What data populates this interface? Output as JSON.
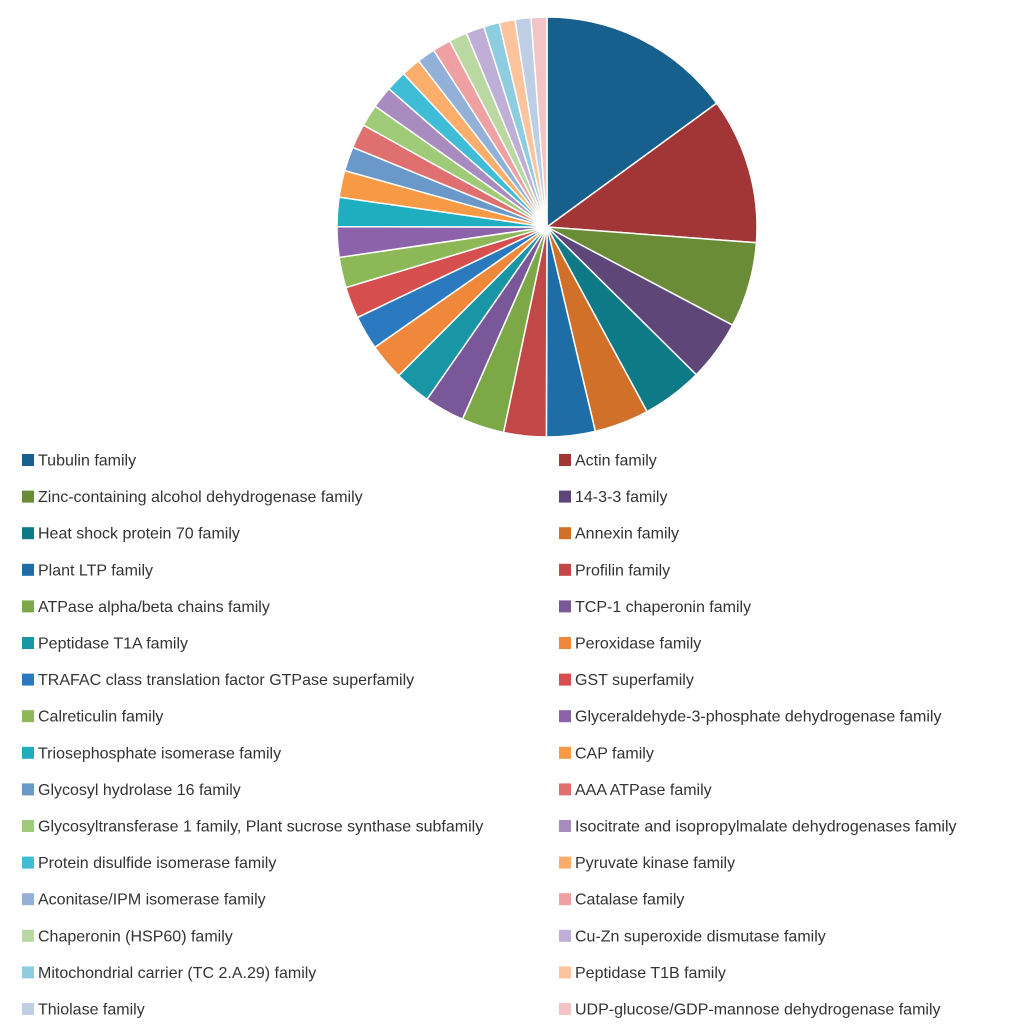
{
  "chart_data": {
    "type": "pie",
    "title": "",
    "legend_position": "bottom",
    "categories": [
      "Tubulin family",
      "Actin family",
      "Zinc-containing alcohol dehydrogenase family",
      "14-3-3 family",
      "Heat shock protein 70 family",
      "Annexin family",
      "Plant LTP family",
      "Profilin family",
      "ATPase alpha/beta chains family",
      "TCP-1 chaperonin family",
      "Peptidase T1A family",
      "Peroxidase family",
      "TRAFAC class translation factor GTPase superfamily",
      "GST superfamily",
      "Calreticulin family",
      "Glyceraldehyde-3-phosphate dehydrogenase family",
      "Triosephosphate isomerase family",
      "CAP family",
      "Glycosyl hydrolase 16 family",
      "AAA ATPase family",
      "Glycosyltransferase 1 family, Plant sucrose synthase subfamily",
      "Isocitrate and isopropylmalate dehydrogenases family",
      "Protein disulfide isomerase family",
      "Pyruvate kinase family",
      "Aconitase/IPM isomerase family",
      "Catalase family",
      "Chaperonin (HSP60) family",
      "Cu-Zn superoxide dismutase family",
      "Mitochondrial carrier (TC 2.A.29) family",
      "Peptidase T1B family",
      "Thiolase family",
      "UDP-glucose/GDP-mannose dehydrogenase family"
    ],
    "values": [
      16,
      12,
      7,
      5,
      5,
      4.5,
      4,
      3.5,
      3.5,
      3.3,
      3,
      3,
      2.8,
      2.6,
      2.5,
      2.5,
      2.4,
      2.2,
      2,
      2,
      1.8,
      1.8,
      1.7,
      1.6,
      1.5,
      1.5,
      1.5,
      1.5,
      1.3,
      1.3,
      1.3,
      1.3
    ],
    "colors": [
      "#175F8D",
      "#A23535",
      "#6B8C37",
      "#5E4778",
      "#0E7A88",
      "#D07029",
      "#1E6DA6",
      "#C24747",
      "#7CA848",
      "#7A5798",
      "#1996A6",
      "#F0883B",
      "#2B7AC0",
      "#D64E4E",
      "#8DB858",
      "#8C62AA",
      "#1EAEC0",
      "#F79A46",
      "#6A98C8",
      "#E07070",
      "#9FCB78",
      "#A88CC0",
      "#3FBCD6",
      "#FBAE6C",
      "#92B0D8",
      "#EFA0A2",
      "#BAD8A2",
      "#BFAED5",
      "#8ECDE0",
      "#FCC39C",
      "#BECEE4",
      "#F2C4C6"
    ]
  }
}
